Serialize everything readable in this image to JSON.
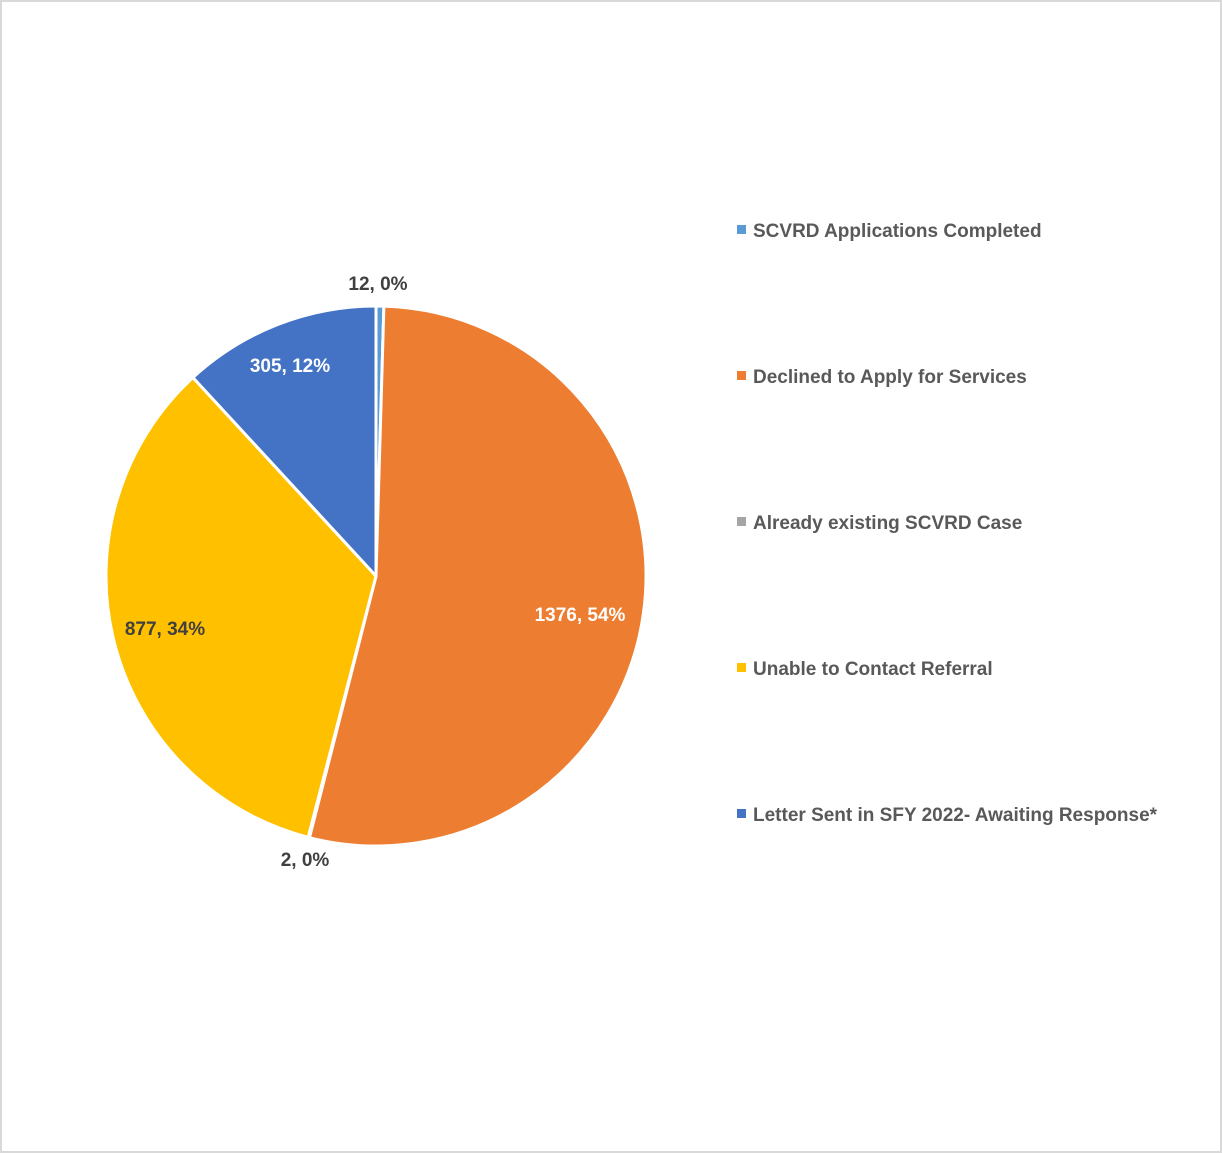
{
  "chart_data": {
    "type": "pie",
    "title": "",
    "legend_position": "right",
    "slices": [
      {
        "name": "SCVRD Applications Completed",
        "value": 12,
        "percent": "0%",
        "label": "12, 0%",
        "color": "#5b9bd5",
        "label_color": "#404040"
      },
      {
        "name": "Declined to Apply for Services",
        "value": 1376,
        "percent": "54%",
        "label": "1376, 54%",
        "color": "#ed7d31",
        "label_color": "#ffffff"
      },
      {
        "name": "Already existing SCVRD Case",
        "value": 2,
        "percent": "0%",
        "label": "2, 0%",
        "color": "#a5a5a5",
        "label_color": "#404040"
      },
      {
        "name": "Unable to Contact Referral",
        "value": 877,
        "percent": "34%",
        "label": "877, 34%",
        "color": "#ffc000",
        "label_color": "#404040"
      },
      {
        "name": "Letter Sent in SFY 2022- Awaiting Response*",
        "value": 305,
        "percent": "12%",
        "label": "305, 12%",
        "color": "#4472c4",
        "label_color": "#ffffff"
      }
    ]
  }
}
